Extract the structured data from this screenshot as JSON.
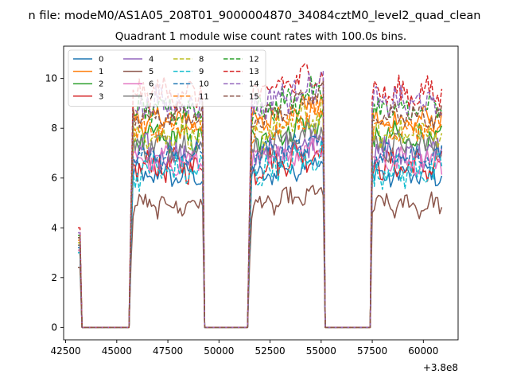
{
  "chart_data": {
    "type": "line",
    "suptitle": "n file: modeM0/AS1A05_208T01_9000004870_34084cztM0_level2_quad_clean",
    "title": "Quadrant 1 module wise count rates with 100.0s bins.",
    "xlabel": "",
    "ylabel": "",
    "offset_label": "+3.8e8",
    "xlim": [
      42400,
      61700
    ],
    "ylim": [
      -0.5,
      11.3
    ],
    "xticks": [
      42500,
      45000,
      47500,
      50000,
      52500,
      55000,
      57500,
      60000
    ],
    "xtick_labels": [
      "42500",
      "45000",
      "47500",
      "50000",
      "52500",
      "55000",
      "57500",
      "60000"
    ],
    "yticks": [
      0,
      2,
      4,
      6,
      8,
      10
    ],
    "ytick_labels": [
      "0",
      "2",
      "4",
      "6",
      "8",
      "10"
    ],
    "legend_position": "top-left",
    "legend_columns": 4,
    "segments": [
      {
        "start": 43100,
        "end": 43300,
        "kind": "spike"
      },
      {
        "start": 45700,
        "end": 49250,
        "kind": "on"
      },
      {
        "start": 51500,
        "end": 55150,
        "kind": "on"
      },
      {
        "start": 57450,
        "end": 60950,
        "kind": "on"
      }
    ],
    "gaps_value": 0,
    "series": [
      {
        "name": "0",
        "color": "#1f77b4",
        "dash": "solid",
        "level": 6.1,
        "spike": 3.0
      },
      {
        "name": "1",
        "color": "#ff7f0e",
        "dash": "solid",
        "level": 8.3,
        "spike": 3.6
      },
      {
        "name": "2",
        "color": "#2ca02c",
        "dash": "solid",
        "level": 7.6,
        "spike": 3.3
      },
      {
        "name": "3",
        "color": "#d62728",
        "dash": "solid",
        "level": 6.5,
        "spike": 3.1
      },
      {
        "name": "4",
        "color": "#9467bd",
        "dash": "solid",
        "level": 7.0,
        "spike": 3.2
      },
      {
        "name": "5",
        "color": "#8c564b",
        "dash": "solid",
        "level": 4.9,
        "spike": 2.4
      },
      {
        "name": "6",
        "color": "#e377c2",
        "dash": "solid",
        "level": 6.7,
        "spike": 3.1
      },
      {
        "name": "7",
        "color": "#7f7f7f",
        "dash": "solid",
        "level": 7.3,
        "spike": 3.3
      },
      {
        "name": "8",
        "color": "#bcbd22",
        "dash": "dashed",
        "level": 7.8,
        "spike": 3.4
      },
      {
        "name": "9",
        "color": "#17becf",
        "dash": "dashed",
        "level": 6.3,
        "spike": 3.0
      },
      {
        "name": "10",
        "color": "#1f77b4",
        "dash": "dashed",
        "level": 6.9,
        "spike": 3.2
      },
      {
        "name": "11",
        "color": "#ff7f0e",
        "dash": "dashed",
        "level": 8.0,
        "spike": 3.5
      },
      {
        "name": "12",
        "color": "#2ca02c",
        "dash": "dashed",
        "level": 8.7,
        "spike": 3.7
      },
      {
        "name": "13",
        "color": "#d62728",
        "dash": "dashed",
        "level": 9.4,
        "spike": 4.0
      },
      {
        "name": "14",
        "color": "#9467bd",
        "dash": "dashed",
        "level": 9.0,
        "spike": 3.8
      },
      {
        "name": "15",
        "color": "#8c564b",
        "dash": "dashed",
        "level": 8.5,
        "spike": 3.6
      }
    ]
  }
}
